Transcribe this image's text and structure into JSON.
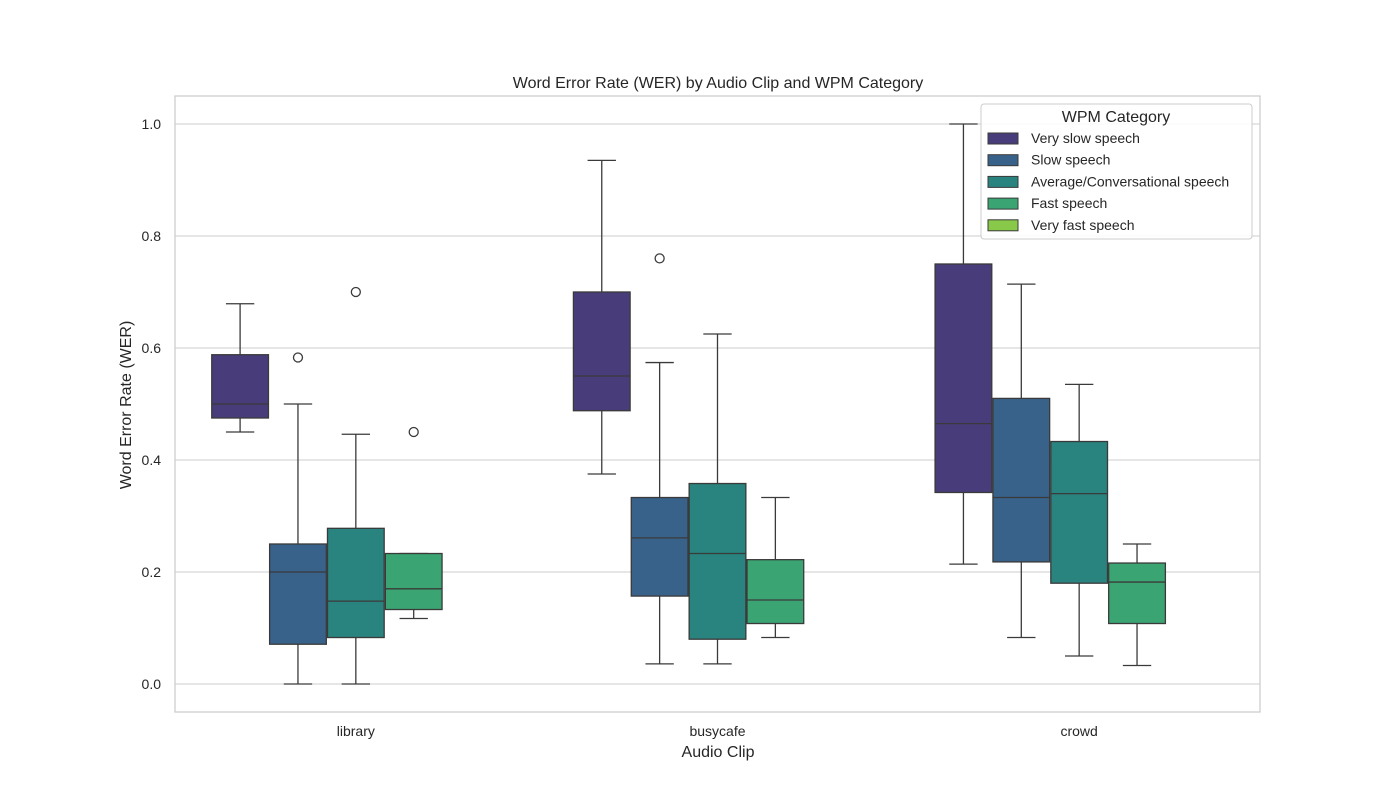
{
  "chart_data": {
    "type": "box",
    "title": "Word Error Rate (WER) by Audio Clip and WPM Category",
    "xlabel": "Audio Clip",
    "ylabel": "Word Error Rate (WER)",
    "ylim": [
      -0.05,
      1.05
    ],
    "yticks": [
      "0.0",
      "0.2",
      "0.4",
      "0.6",
      "0.8",
      "1.0"
    ],
    "grid": "horizontal",
    "categories": [
      "library",
      "busycafe",
      "crowd"
    ],
    "legend": {
      "title": "WPM Category",
      "placement": "top-right",
      "entries": [
        "Very slow speech",
        "Slow speech",
        "Average/Conversational speech",
        "Fast speech",
        "Very fast speech"
      ]
    },
    "series": [
      {
        "name": "Very slow speech",
        "color": "#483d7a",
        "boxes": [
          {
            "category": "library",
            "whisker_low": 0.45,
            "q1": 0.475,
            "median": 0.5,
            "q3": 0.588,
            "whisker_high": 0.679,
            "outliers": []
          },
          {
            "category": "busycafe",
            "whisker_low": 0.375,
            "q1": 0.488,
            "median": 0.55,
            "q3": 0.7,
            "whisker_high": 0.935,
            "outliers": []
          },
          {
            "category": "crowd",
            "whisker_low": 0.214,
            "q1": 0.342,
            "median": 0.465,
            "q3": 0.75,
            "whisker_high": 1.0,
            "outliers": []
          }
        ]
      },
      {
        "name": "Slow speech",
        "color": "#39628a",
        "boxes": [
          {
            "category": "library",
            "whisker_low": 0.0,
            "q1": 0.071,
            "median": 0.2,
            "q3": 0.25,
            "whisker_high": 0.5,
            "outliers": [
              0.583
            ]
          },
          {
            "category": "busycafe",
            "whisker_low": 0.036,
            "q1": 0.157,
            "median": 0.261,
            "q3": 0.333,
            "whisker_high": 0.574,
            "outliers": [
              0.76
            ]
          },
          {
            "category": "crowd",
            "whisker_low": 0.083,
            "q1": 0.218,
            "median": 0.333,
            "q3": 0.51,
            "whisker_high": 0.714,
            "outliers": []
          }
        ]
      },
      {
        "name": "Average/Conversational speech",
        "color": "#29837f",
        "boxes": [
          {
            "category": "library",
            "whisker_low": 0.0,
            "q1": 0.083,
            "median": 0.148,
            "q3": 0.278,
            "whisker_high": 0.446,
            "outliers": [
              0.7
            ]
          },
          {
            "category": "busycafe",
            "whisker_low": 0.036,
            "q1": 0.08,
            "median": 0.233,
            "q3": 0.358,
            "whisker_high": 0.625,
            "outliers": []
          },
          {
            "category": "crowd",
            "whisker_low": 0.05,
            "q1": 0.18,
            "median": 0.34,
            "q3": 0.433,
            "whisker_high": 0.535,
            "outliers": []
          }
        ]
      },
      {
        "name": "Fast speech",
        "color": "#3aa573",
        "boxes": [
          {
            "category": "library",
            "whisker_low": 0.117,
            "q1": 0.133,
            "median": 0.17,
            "q3": 0.233,
            "whisker_high": 0.233,
            "outliers": [
              0.45
            ]
          },
          {
            "category": "busycafe",
            "whisker_low": 0.083,
            "q1": 0.108,
            "median": 0.15,
            "q3": 0.222,
            "whisker_high": 0.333,
            "outliers": []
          },
          {
            "category": "crowd",
            "whisker_low": 0.033,
            "q1": 0.108,
            "median": 0.182,
            "q3": 0.216,
            "whisker_high": 0.25,
            "outliers": []
          }
        ]
      },
      {
        "name": "Very fast speech",
        "color": "#89c94a",
        "boxes": []
      }
    ]
  }
}
